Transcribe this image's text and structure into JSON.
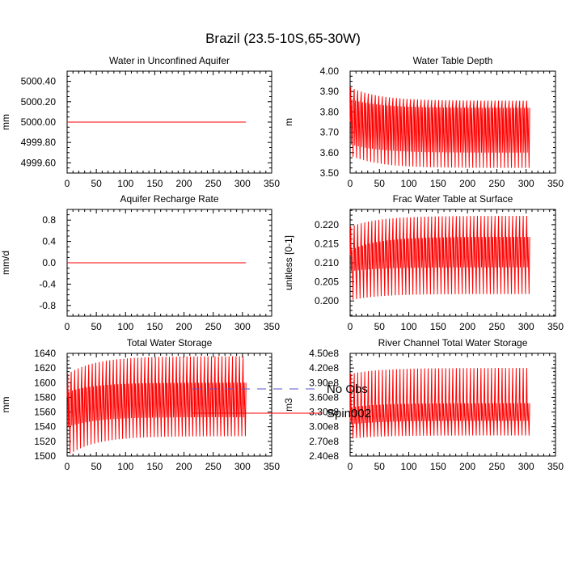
{
  "figure_title": "Brazil (23.5-10S,65-30W)",
  "legend": {
    "entries": [
      {
        "label": "No Obs",
        "color": "#5555cc",
        "style": "dashed"
      },
      {
        "label": "Spin002",
        "color": "#ff0000",
        "style": "solid"
      }
    ]
  },
  "chart_data": [
    {
      "type": "line",
      "title": "Water in Unconfined Aquifer",
      "ylabel": "mm",
      "xlim": [
        0,
        350
      ],
      "xticks": [
        0,
        50,
        100,
        150,
        200,
        250,
        300,
        350
      ],
      "ylim": [
        4999.5,
        5000.5
      ],
      "yticks": [
        4999.6,
        4999.8,
        5000.0,
        5000.2,
        5000.4
      ],
      "ytick_labels": [
        "4999.60",
        "4999.80",
        "5000.00",
        "5000.20",
        "5000.40"
      ],
      "series": [
        {
          "name": "Spin002",
          "color": "#ff0000",
          "kind": "constant",
          "x_start": 0,
          "x_end": 306,
          "value": 5000.0
        }
      ]
    },
    {
      "type": "line",
      "title": "Water Table Depth",
      "ylabel": "m",
      "xlim": [
        0,
        350
      ],
      "xticks": [
        0,
        50,
        100,
        150,
        200,
        250,
        300,
        350
      ],
      "ylim": [
        3.5,
        4.0
      ],
      "yticks": [
        3.5,
        3.6,
        3.7,
        3.8,
        3.9,
        4.0
      ],
      "ytick_labels": [
        "3.50",
        "3.60",
        "3.70",
        "3.80",
        "3.90",
        "4.00"
      ],
      "series": [
        {
          "name": "Spin002",
          "color": "#ff0000",
          "kind": "seasonal",
          "x_start": 0,
          "x_end": 306,
          "period": 6,
          "start_value": 3.75,
          "high_start": 3.92,
          "high_end": 3.855,
          "low_start": 3.58,
          "low_end": 3.525,
          "mid_high_start": 3.86,
          "mid_high_end": 3.82,
          "mid_low_start": 3.64,
          "mid_low_end": 3.6
        }
      ]
    },
    {
      "type": "line",
      "title": "Aquifer Recharge Rate",
      "ylabel": "mm/d",
      "xlim": [
        0,
        350
      ],
      "xticks": [
        0,
        50,
        100,
        150,
        200,
        250,
        300,
        350
      ],
      "ylim": [
        -1.0,
        1.0
      ],
      "yticks": [
        -0.8,
        -0.4,
        0.0,
        0.4,
        0.8
      ],
      "ytick_labels": [
        "-0.8",
        "-0.4",
        "0.0",
        "0.4",
        "0.8"
      ],
      "series": [
        {
          "name": "Spin002",
          "color": "#ff0000",
          "kind": "constant",
          "x_start": 0,
          "x_end": 306,
          "value": 0.0
        }
      ]
    },
    {
      "type": "line",
      "title": "Frac Water Table at Surface",
      "ylabel": "unitless [0-1]",
      "xlim": [
        0,
        350
      ],
      "xticks": [
        0,
        50,
        100,
        150,
        200,
        250,
        300,
        350
      ],
      "ylim": [
        0.196,
        0.224
      ],
      "yticks": [
        0.2,
        0.205,
        0.21,
        0.215,
        0.22
      ],
      "ytick_labels": [
        "0.200",
        "0.205",
        "0.210",
        "0.215",
        "0.220"
      ],
      "series": [
        {
          "name": "Spin002",
          "color": "#ff0000",
          "kind": "seasonal",
          "x_start": 0,
          "x_end": 306,
          "period": 6,
          "start_value": 0.212,
          "high_start": 0.2195,
          "high_end": 0.2223,
          "low_start": 0.2003,
          "low_end": 0.2018,
          "mid_high_start": 0.2135,
          "mid_high_end": 0.2168,
          "mid_low_start": 0.2078,
          "mid_low_end": 0.2088
        }
      ]
    },
    {
      "type": "line",
      "title": "Total Water Storage",
      "ylabel": "mm",
      "xlim": [
        0,
        350
      ],
      "xticks": [
        0,
        50,
        100,
        150,
        200,
        250,
        300,
        350
      ],
      "ylim": [
        1500,
        1640
      ],
      "yticks": [
        1500,
        1520,
        1540,
        1560,
        1580,
        1600,
        1620,
        1640
      ],
      "ytick_labels": [
        "1500",
        "1520",
        "1540",
        "1560",
        "1580",
        "1600",
        "1620",
        "1640"
      ],
      "series": [
        {
          "name": "Spin002",
          "color": "#ff0000",
          "kind": "seasonal",
          "x_start": 0,
          "x_end": 306,
          "period": 6,
          "start_value": 1580,
          "high_start": 1612,
          "high_end": 1636,
          "low_start": 1503,
          "low_end": 1527,
          "mid_high_start": 1588,
          "mid_high_end": 1600,
          "mid_low_start": 1540,
          "mid_low_end": 1553
        }
      ]
    },
    {
      "type": "line",
      "title": "River Channel Total Water Storage",
      "ylabel": "m3",
      "xlim": [
        0,
        350
      ],
      "xticks": [
        0,
        50,
        100,
        150,
        200,
        250,
        300,
        350
      ],
      "ylim": [
        240000000,
        450000000
      ],
      "yticks": [
        240000000,
        270000000,
        300000000,
        330000000,
        360000000,
        390000000,
        420000000,
        450000000
      ],
      "ytick_labels": [
        "2.40e8",
        "2.70e8",
        "3.00e8",
        "3.30e8",
        "3.60e8",
        "3.90e8",
        "4.20e8",
        "4.50e8"
      ],
      "series": [
        {
          "name": "Spin002",
          "color": "#ff0000",
          "kind": "seasonal",
          "x_start": 0,
          "x_end": 306,
          "period": 6,
          "start_value": 310000000,
          "high_start": 408000000,
          "high_end": 420000000,
          "low_start": 276000000,
          "low_end": 282000000,
          "mid_high_start": 340000000,
          "mid_high_end": 348000000,
          "mid_low_start": 305000000,
          "mid_low_end": 312000000
        }
      ]
    }
  ]
}
